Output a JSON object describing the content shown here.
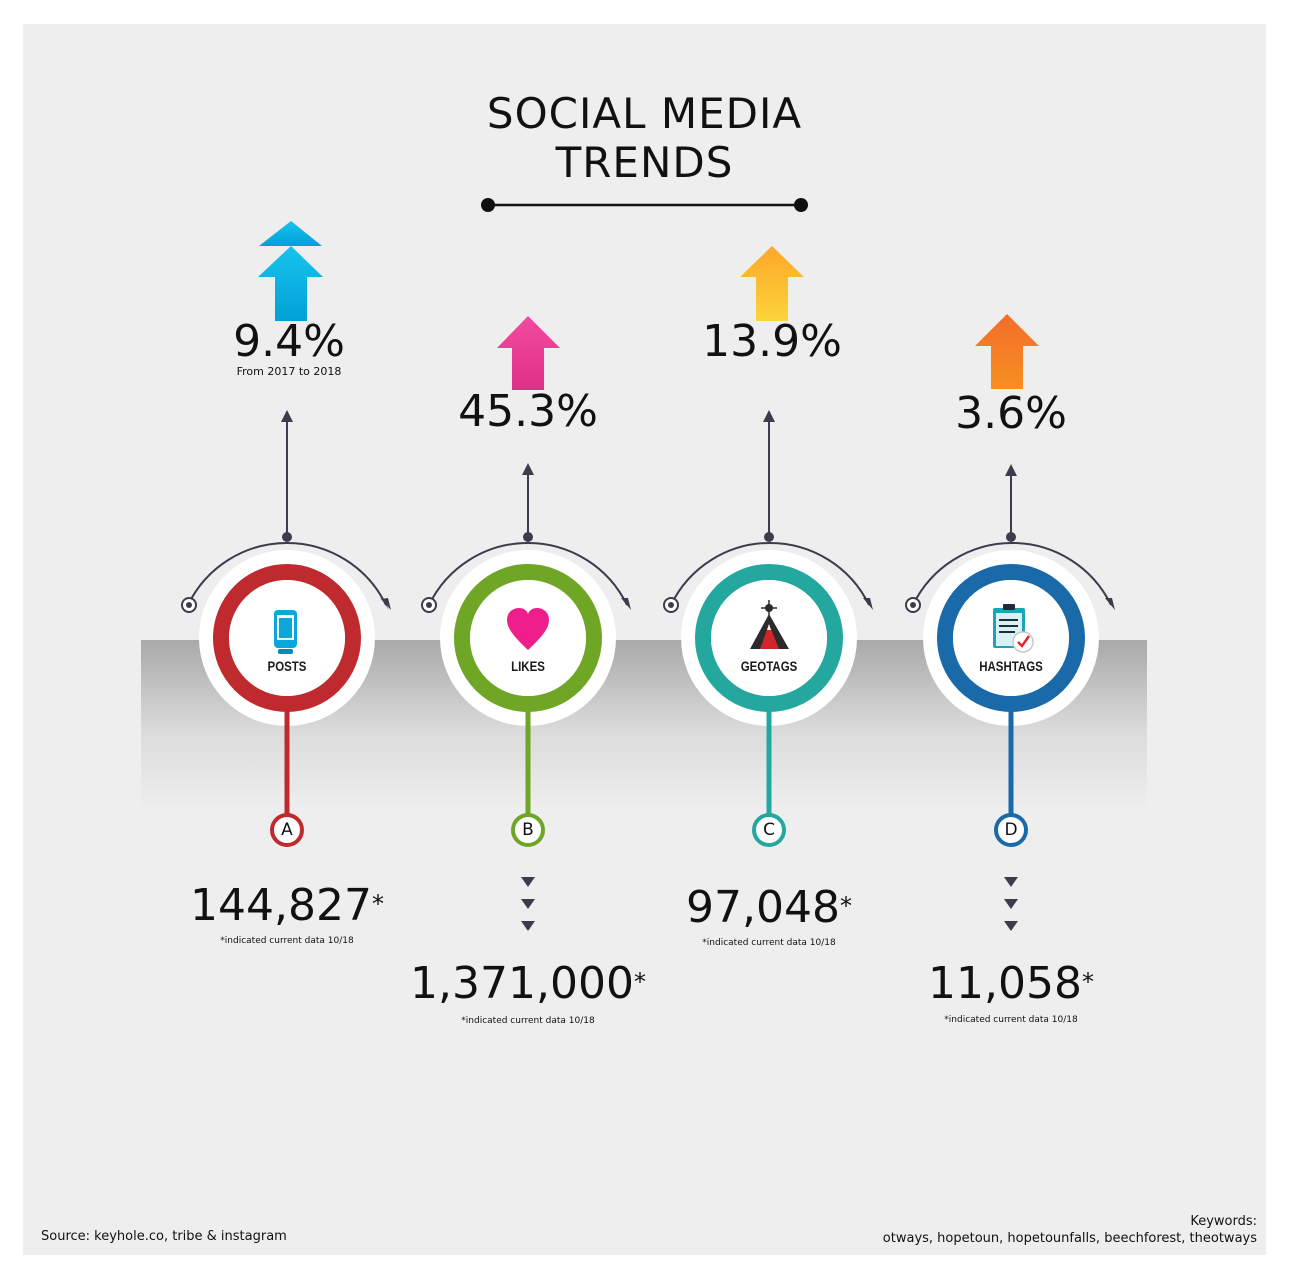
{
  "title_line1": "SOCIAL MEDIA",
  "title_line2": "TRENDS",
  "items": [
    {
      "letter": "A",
      "label": "POSTS",
      "icon": "phone-icon",
      "color": "#be2a2e",
      "arrow_color": "#00b3e3",
      "growth": "9.4%",
      "growth_note": "From 2017 to 2018",
      "value": "144,827",
      "asterisk": "*",
      "note": "*indicated current data 10/18"
    },
    {
      "letter": "B",
      "label": "LIKES",
      "icon": "heart-icon",
      "color": "#6fa626",
      "arrow_color": "#ec3c8e",
      "growth": "45.3%",
      "growth_note": "",
      "value": "1,371,000",
      "asterisk": "*",
      "note": "*indicated current data 10/18"
    },
    {
      "letter": "C",
      "label": "GEOTAGS",
      "icon": "mountain-pin-icon",
      "color": "#24a79f",
      "arrow_color": "#fbb62a",
      "growth": "13.9%",
      "growth_note": "",
      "value": "97,048",
      "asterisk": "*",
      "note": "*indicated current data 10/18"
    },
    {
      "letter": "D",
      "label": "HASHTAGS",
      "icon": "clipboard-icon",
      "color": "#1a6aa9",
      "arrow_color": "#f57425",
      "growth": "3.6%",
      "growth_note": "",
      "value": "11,058",
      "asterisk": "*",
      "note": "*indicated current data 10/18"
    }
  ],
  "source": "Source: keyhole.co, tribe & instagram",
  "keywords_label": "Keywords:",
  "keywords": "otways, hopetoun, hopetounfalls, beechforest, theotways"
}
